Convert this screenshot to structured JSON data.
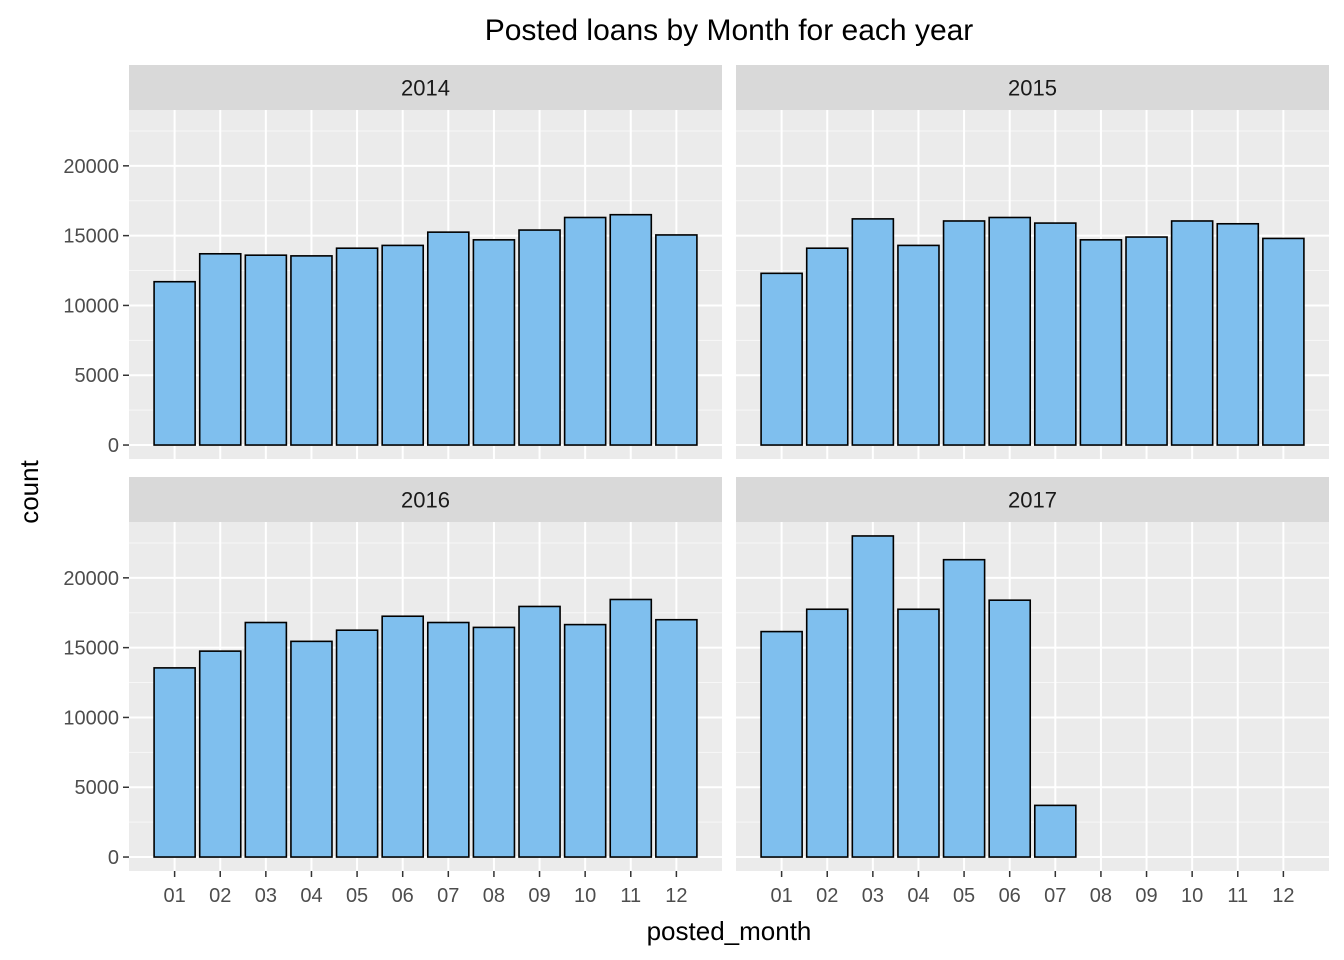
{
  "chart_data": {
    "type": "bar",
    "title": "Posted loans by Month for each year",
    "xlabel": "posted_month",
    "ylabel": "count",
    "categories": [
      "01",
      "02",
      "03",
      "04",
      "05",
      "06",
      "07",
      "08",
      "09",
      "10",
      "11",
      "12"
    ],
    "yticks": [
      0,
      5000,
      10000,
      15000,
      20000
    ],
    "ylim": [
      -1000,
      24000
    ],
    "grid": true,
    "facets": [
      {
        "name": "2014",
        "values": [
          11700,
          13700,
          13600,
          13550,
          14100,
          14300,
          15250,
          14700,
          15400,
          16300,
          16500,
          15050
        ]
      },
      {
        "name": "2015",
        "values": [
          12300,
          14100,
          16200,
          14300,
          16050,
          16300,
          15900,
          14700,
          14900,
          16050,
          15850,
          14800
        ]
      },
      {
        "name": "2016",
        "values": [
          13550,
          14750,
          16800,
          15450,
          16250,
          17250,
          16800,
          16450,
          17950,
          16650,
          18450,
          17000
        ]
      },
      {
        "name": "2017",
        "values": [
          16150,
          17750,
          23000,
          17750,
          21300,
          18400,
          3700,
          null,
          null,
          null,
          null,
          null
        ]
      }
    ],
    "colors": {
      "bar_fill": "#7fbfee",
      "bar_stroke": "#000000",
      "panel_bg": "#ebebeb",
      "strip_bg": "#d9d9d9",
      "grid_major": "#ffffff",
      "tick_label": "#4d4d4d"
    }
  }
}
